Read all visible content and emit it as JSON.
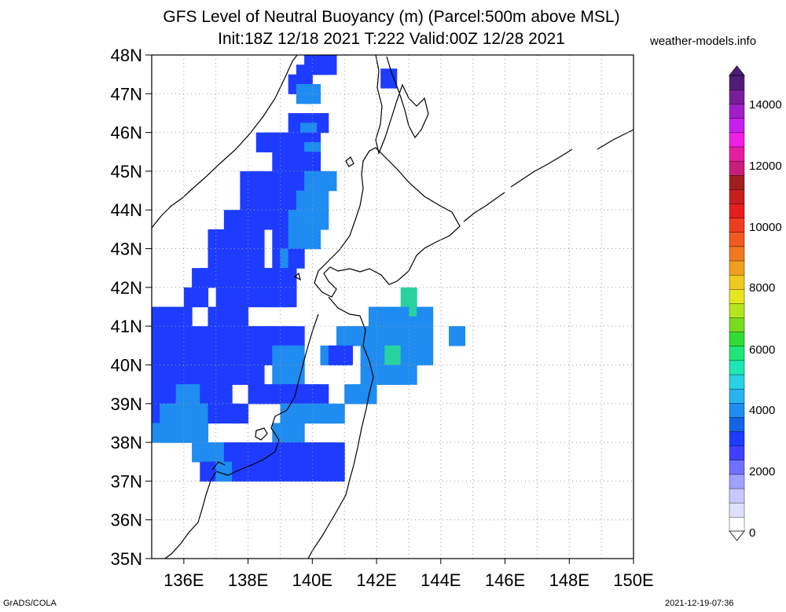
{
  "title_line1": "GFS Level of Neutral Buoyancy (m) (Parcel:500m above MSL)",
  "title_line2": "Init:18Z 12/18 2021 T:222 Valid:00Z 12/28 2021",
  "website": "weather-models.info",
  "footer_left": "GrADS/COLA",
  "footer_right": "2021-12-19-07:36",
  "map": {
    "lat_labels": [
      "48N",
      "47N",
      "46N",
      "45N",
      "44N",
      "43N",
      "42N",
      "41N",
      "40N",
      "39N",
      "38N",
      "37N",
      "36N",
      "35N"
    ],
    "lon_labels": [
      "136E",
      "138E",
      "140E",
      "142E",
      "144E",
      "146E",
      "148E",
      "150E"
    ],
    "lat_range": [
      35,
      48
    ],
    "lon_range": [
      135,
      150
    ],
    "grid": "dotted"
  },
  "colorbar": {
    "labels": [
      "0",
      "2000",
      "4000",
      "6000",
      "8000",
      "10000",
      "12000",
      "14000"
    ],
    "colors": [
      "#ffffff",
      "#e0e0ff",
      "#c8c8ff",
      "#a0a0ff",
      "#7070ff",
      "#4040ff",
      "#1e3cff",
      "#1464e6",
      "#1e8cf0",
      "#28b4f0",
      "#28d2e6",
      "#1ee6b4",
      "#1ee678",
      "#32dc32",
      "#78dc1e",
      "#b4e61e",
      "#e6e61e",
      "#f0c81e",
      "#f0a01e",
      "#f0781e",
      "#f05a1e",
      "#f03c1e",
      "#e61e1e",
      "#c81e1e",
      "#a01e1e",
      "#c81e78",
      "#e61ea0",
      "#f01ee6",
      "#c81ef0",
      "#a01ec8",
      "#781e9a",
      "#501e78"
    ],
    "accent_colors": {
      "low": "#1e3cff",
      "mid": "#28d2e6",
      "high_green": "#32dc32"
    }
  },
  "field_data": {
    "units": "m",
    "resolution_deg": 0.5,
    "cells": [
      [
        41,
        47.75,
        1
      ],
      [
        41.5,
        47.75,
        1
      ],
      [
        40.5,
        47.5,
        1
      ],
      [
        41,
        47.5,
        1
      ],
      [
        41.5,
        47.5,
        1
      ],
      [
        40,
        47.25,
        1
      ],
      [
        39.5,
        47,
        1
      ],
      [
        40,
        47,
        1
      ],
      [
        40,
        46.75,
        2
      ],
      [
        40.5,
        46.75,
        2
      ],
      [
        45.25,
        47.15,
        1
      ],
      [
        39.5,
        46,
        1
      ],
      [
        40,
        46,
        1
      ],
      [
        40.5,
        46,
        1
      ],
      [
        41,
        46,
        1
      ],
      [
        40.25,
        45.75,
        2
      ],
      [
        37.5,
        45.5,
        1
      ],
      [
        38,
        45.5,
        1
      ],
      [
        38.5,
        45.5,
        1
      ],
      [
        39,
        45.5,
        1
      ],
      [
        39.5,
        45.5,
        1
      ],
      [
        40,
        45.5,
        1
      ],
      [
        40.5,
        45.5,
        1
      ],
      [
        40.5,
        45.25,
        2
      ],
      [
        38.5,
        45,
        1
      ],
      [
        39,
        45,
        1
      ],
      [
        39.5,
        45,
        1
      ],
      [
        40,
        45,
        1
      ],
      [
        40.5,
        45,
        1
      ],
      [
        36.5,
        44.5,
        1
      ],
      [
        37,
        44.5,
        1
      ],
      [
        37.5,
        44.5,
        1
      ],
      [
        38.5,
        44.5,
        1
      ],
      [
        39.5,
        44.5,
        1
      ],
      [
        40.5,
        44.5,
        2
      ],
      [
        41,
        44.5,
        2
      ],
      [
        41.5,
        44.5,
        2
      ],
      [
        36.5,
        44,
        1
      ],
      [
        37,
        44,
        1
      ],
      [
        37.5,
        44,
        1
      ],
      [
        38,
        44,
        1
      ],
      [
        38.5,
        44,
        1
      ],
      [
        39.5,
        44,
        1
      ],
      [
        40,
        44,
        2
      ],
      [
        40.5,
        44,
        2
      ],
      [
        41,
        44,
        2
      ],
      [
        35.5,
        43.5,
        1
      ],
      [
        36,
        43.5,
        1
      ],
      [
        36.5,
        43.5,
        1
      ],
      [
        37,
        43.5,
        1
      ],
      [
        37.5,
        43.5,
        1
      ],
      [
        38,
        43.5,
        1
      ],
      [
        38.5,
        43.5,
        1
      ],
      [
        39,
        43.5,
        1
      ],
      [
        39.5,
        43.5,
        2
      ],
      [
        40,
        43.5,
        2
      ],
      [
        40.5,
        43.5,
        2
      ],
      [
        41,
        43.5,
        2
      ],
      [
        34.5,
        43,
        1
      ],
      [
        35,
        43,
        1
      ],
      [
        35.5,
        43,
        1
      ],
      [
        36,
        43,
        1
      ],
      [
        36.5,
        43,
        1
      ],
      [
        37,
        43,
        1
      ],
      [
        38.5,
        43,
        1
      ],
      [
        39,
        43,
        1
      ],
      [
        39.5,
        43,
        2
      ],
      [
        40,
        43,
        2
      ],
      [
        40.5,
        43,
        2
      ],
      [
        34.5,
        42.5,
        1
      ],
      [
        35,
        42.5,
        1
      ],
      [
        35.5,
        42.5,
        1
      ],
      [
        36,
        42.5,
        1
      ],
      [
        36.5,
        42.5,
        1
      ],
      [
        37,
        42.5,
        1
      ],
      [
        38.5,
        42.5,
        1
      ],
      [
        39,
        42.5,
        2
      ],
      [
        39.5,
        42.5,
        1
      ],
      [
        33.5,
        42,
        1
      ],
      [
        34,
        42,
        1
      ],
      [
        34.5,
        42,
        1
      ],
      [
        35,
        42,
        1
      ],
      [
        35.5,
        42,
        1
      ],
      [
        36,
        42,
        1
      ],
      [
        36.5,
        42,
        1
      ],
      [
        37,
        42,
        1
      ],
      [
        37.5,
        42,
        1
      ],
      [
        38,
        42,
        1
      ],
      [
        38.5,
        42,
        1
      ],
      [
        39,
        42,
        1
      ],
      [
        33,
        41.5,
        1
      ],
      [
        33.5,
        41.5,
        1
      ],
      [
        35,
        41.5,
        1
      ],
      [
        35.5,
        41.5,
        1
      ],
      [
        36,
        41.5,
        1
      ],
      [
        36.5,
        41.5,
        1
      ],
      [
        37.5,
        41.5,
        1
      ],
      [
        38,
        41.5,
        1
      ],
      [
        38.5,
        41.5,
        1
      ],
      [
        39,
        41.5,
        1
      ],
      [
        31,
        41,
        1
      ],
      [
        31.5,
        41,
        1
      ],
      [
        32,
        41,
        1
      ],
      [
        32.5,
        41,
        1
      ],
      [
        34.5,
        41,
        1
      ],
      [
        35,
        41,
        1
      ],
      [
        35.5,
        41,
        1
      ],
      [
        36,
        41,
        1
      ],
      [
        46.5,
        41.5,
        3
      ],
      [
        46,
        41,
        3
      ],
      [
        46.5,
        41,
        3
      ],
      [
        47,
        40.75,
        2
      ],
      [
        46,
        41,
        2
      ],
      [
        45.5,
        41,
        2
      ],
      [
        44.5,
        41,
        2
      ],
      [
        45,
        41,
        2
      ],
      [
        47.5,
        41,
        2
      ],
      [
        31,
        40.5,
        1
      ],
      [
        31.5,
        40.5,
        1
      ],
      [
        32,
        40.5,
        1
      ],
      [
        32.5,
        40.5,
        1
      ],
      [
        33,
        40.5,
        1
      ],
      [
        34,
        40.5,
        1
      ],
      [
        34.5,
        40.5,
        1
      ],
      [
        35,
        40.5,
        1
      ],
      [
        36,
        40.5,
        1
      ],
      [
        36.5,
        40.5,
        1
      ],
      [
        37,
        40.5,
        1
      ],
      [
        37.5,
        40.5,
        1
      ],
      [
        38,
        40.5,
        1
      ],
      [
        38.5,
        40.5,
        1
      ],
      [
        39,
        40.5,
        1
      ],
      [
        39.5,
        40.5,
        1
      ],
      [
        42.5,
        40.5,
        2
      ],
      [
        43,
        40.5,
        2
      ],
      [
        43.5,
        40.5,
        2
      ],
      [
        44,
        40.5,
        2
      ],
      [
        44.5,
        40.5,
        2
      ],
      [
        45,
        40.5,
        2
      ],
      [
        45.5,
        40.5,
        2
      ],
      [
        46,
        40.5,
        2
      ],
      [
        46.5,
        40.5,
        2
      ],
      [
        47,
        40.5,
        2
      ],
      [
        47.5,
        40.5,
        2
      ],
      [
        49.5,
        40.5,
        2
      ],
      [
        31,
        40,
        1
      ],
      [
        31.5,
        40,
        1
      ],
      [
        32,
        40,
        1
      ],
      [
        32.5,
        40,
        1
      ],
      [
        33,
        40,
        1
      ],
      [
        34,
        40,
        1
      ],
      [
        34.5,
        40,
        1
      ],
      [
        35,
        40,
        1
      ],
      [
        36,
        40,
        1
      ],
      [
        36.5,
        40,
        1
      ],
      [
        37,
        40,
        1
      ],
      [
        37.5,
        40,
        1
      ],
      [
        38.5,
        40,
        2
      ],
      [
        39,
        40,
        2
      ],
      [
        39.5,
        40,
        2
      ],
      [
        41.5,
        40,
        2
      ],
      [
        42,
        40,
        1
      ],
      [
        42.5,
        40,
        1
      ],
      [
        44,
        40,
        2
      ],
      [
        44.5,
        40,
        2
      ],
      [
        45,
        40,
        2
      ],
      [
        45.5,
        40,
        3
      ],
      [
        46,
        40,
        3
      ],
      [
        46.5,
        40,
        2
      ],
      [
        47,
        40,
        2
      ],
      [
        47.5,
        40,
        2
      ],
      [
        31,
        39.5,
        1
      ],
      [
        31.5,
        39.5,
        1
      ],
      [
        32,
        39.5,
        1
      ],
      [
        32.5,
        39.5,
        1
      ],
      [
        33,
        39.5,
        1
      ],
      [
        33.5,
        39.5,
        1
      ],
      [
        34,
        39.5,
        1
      ],
      [
        34.5,
        39.5,
        1
      ],
      [
        35,
        39.5,
        1
      ],
      [
        35.5,
        39.5,
        1
      ],
      [
        36,
        39.5,
        1
      ],
      [
        36.5,
        39.5,
        1
      ],
      [
        37,
        39.5,
        1
      ],
      [
        38.5,
        39.5,
        2
      ],
      [
        39,
        39.5,
        2
      ],
      [
        39.5,
        39.5,
        2
      ],
      [
        44,
        39.5,
        2
      ],
      [
        44.5,
        39.5,
        2
      ],
      [
        45,
        39.5,
        2
      ],
      [
        45.5,
        39.5,
        2
      ],
      [
        46,
        39.5,
        2
      ],
      [
        46.5,
        39.5,
        2
      ],
      [
        31,
        39,
        1
      ],
      [
        31.5,
        39,
        1
      ],
      [
        32,
        39,
        1
      ],
      [
        32.5,
        39,
        2
      ],
      [
        33,
        39,
        2
      ],
      [
        33.5,
        39,
        2
      ],
      [
        34,
        39,
        1
      ],
      [
        34.5,
        39,
        1
      ],
      [
        35,
        39,
        1
      ],
      [
        37,
        39,
        1
      ],
      [
        37.5,
        39,
        1
      ],
      [
        38.5,
        39,
        1
      ],
      [
        39,
        39,
        1
      ],
      [
        39.5,
        39,
        1
      ],
      [
        40,
        39,
        1
      ],
      [
        40.5,
        39,
        1
      ],
      [
        41,
        39,
        1
      ],
      [
        43,
        39,
        2
      ],
      [
        43.5,
        39,
        2
      ],
      [
        44,
        39,
        2
      ],
      [
        40.5,
        38.5,
        2
      ],
      [
        41,
        38.5,
        2
      ],
      [
        41.5,
        38.5,
        2
      ],
      [
        42,
        38.5,
        2
      ],
      [
        31,
        38.5,
        1
      ],
      [
        31.5,
        38.5,
        2
      ],
      [
        32,
        38.5,
        2
      ],
      [
        32.5,
        38.5,
        2
      ],
      [
        33,
        38.5,
        2
      ],
      [
        33.5,
        38.5,
        2
      ],
      [
        34,
        38.5,
        2
      ],
      [
        34.5,
        38.5,
        1
      ],
      [
        35.5,
        38.5,
        1
      ],
      [
        36,
        38.5,
        1
      ],
      [
        39,
        38.5,
        2
      ],
      [
        39.5,
        38.5,
        2
      ],
      [
        40,
        38.5,
        2
      ],
      [
        31,
        38,
        2
      ],
      [
        31.5,
        38,
        2
      ],
      [
        32,
        38,
        2
      ],
      [
        32.5,
        38,
        2
      ],
      [
        33,
        38,
        2
      ],
      [
        33.5,
        38,
        2
      ],
      [
        38.5,
        38,
        2
      ],
      [
        39,
        38,
        2
      ],
      [
        39.5,
        38,
        2
      ],
      [
        33.5,
        37.5,
        2
      ],
      [
        34,
        37.5,
        2
      ],
      [
        34.5,
        37.5,
        2
      ],
      [
        35,
        37.5,
        2
      ],
      [
        35.5,
        37.5,
        1
      ],
      [
        36,
        37.5,
        1
      ],
      [
        36.5,
        37.5,
        1
      ],
      [
        37,
        37.5,
        1
      ],
      [
        37.5,
        37.5,
        1
      ],
      [
        38,
        37.5,
        1
      ],
      [
        38.5,
        37.5,
        1
      ],
      [
        39,
        37.5,
        1
      ],
      [
        39.5,
        37.5,
        1
      ],
      [
        40,
        37.5,
        1
      ],
      [
        40.5,
        37.5,
        1
      ],
      [
        41,
        37.5,
        1
      ],
      [
        41.5,
        37.5,
        1
      ],
      [
        42,
        37.5,
        1
      ],
      [
        34,
        37,
        1
      ],
      [
        34.5,
        37,
        1
      ],
      [
        35,
        37,
        2
      ],
      [
        36,
        37,
        1
      ],
      [
        36.5,
        37,
        1
      ],
      [
        37,
        37,
        1
      ],
      [
        37.5,
        37,
        1
      ],
      [
        38,
        37,
        1
      ],
      [
        38.5,
        37,
        1
      ],
      [
        39,
        37,
        1
      ],
      [
        39.5,
        37,
        1
      ],
      [
        40,
        37,
        1
      ],
      [
        40.5,
        37,
        1
      ],
      [
        41,
        37,
        1
      ],
      [
        41.5,
        37,
        1
      ],
      [
        42,
        37,
        1
      ]
    ]
  }
}
